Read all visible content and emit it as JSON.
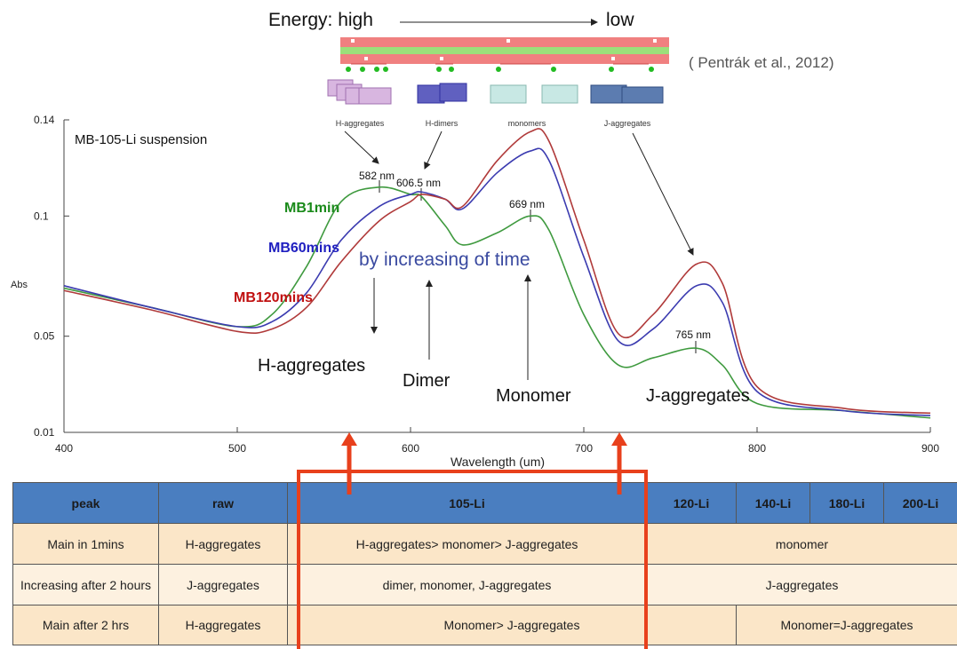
{
  "diagram": {
    "energy_high": "Energy: high",
    "energy_low": "low",
    "citation": "( Pentrák et al., 2012)",
    "labels": [
      "H-aggregates",
      "H-dimers",
      "monomers",
      "J-aggregates"
    ]
  },
  "chart_data": {
    "type": "line",
    "xlabel": "Wavelength (um)",
    "ylabel": "Abs",
    "x": [
      400,
      450,
      500,
      520,
      540,
      560,
      582,
      600,
      606.5,
      620,
      630,
      650,
      669,
      680,
      700,
      720,
      740,
      765,
      780,
      800,
      850,
      900
    ],
    "series": [
      {
        "name": "MB1min",
        "color": "#3f9a3f",
        "label_color": "#1a8a1a",
        "values": [
          0.07,
          0.062,
          0.054,
          0.059,
          0.079,
          0.106,
          0.112,
          0.109,
          0.108,
          0.096,
          0.088,
          0.093,
          0.1,
          0.094,
          0.059,
          0.038,
          0.041,
          0.045,
          0.038,
          0.022,
          0.019,
          0.016
        ]
      },
      {
        "name": "MB60mins",
        "color": "#3b3bb0",
        "label_color": "#2020c0",
        "values": [
          0.071,
          0.062,
          0.054,
          0.056,
          0.068,
          0.09,
          0.104,
          0.109,
          0.11,
          0.107,
          0.103,
          0.118,
          0.127,
          0.123,
          0.083,
          0.048,
          0.053,
          0.071,
          0.064,
          0.027,
          0.019,
          0.017
        ]
      },
      {
        "name": "MB120mins",
        "color": "#b03a3a",
        "label_color": "#c01010",
        "values": [
          0.069,
          0.061,
          0.052,
          0.053,
          0.062,
          0.081,
          0.098,
          0.106,
          0.109,
          0.107,
          0.104,
          0.123,
          0.135,
          0.131,
          0.09,
          0.051,
          0.059,
          0.08,
          0.072,
          0.029,
          0.02,
          0.018
        ]
      }
    ],
    "xlim": [
      400,
      900
    ],
    "xticks": [
      400,
      500,
      600,
      700,
      800,
      900
    ],
    "ylim": [
      0.01,
      0.14
    ],
    "yticks": [
      0.01,
      0.05,
      0.1,
      0.14
    ],
    "annotations": [
      "MB-105-Li suspension",
      "582 nm",
      "606.5 nm",
      "669 nm",
      "765 nm",
      "by increasing of time",
      "H-aggregates",
      "Dimer",
      "Monomer",
      "J-aggregates"
    ]
  },
  "table": {
    "header": [
      "peak",
      "raw",
      "105-Li",
      "120-Li",
      "140-Li",
      "180-Li",
      "200-Li"
    ],
    "rows": [
      [
        "Main in 1mins",
        "H-aggregates",
        "H-aggregates> monomer> J-aggregates",
        "monomer"
      ],
      [
        "Increasing after 2 hours",
        "J-aggregates",
        "dimer, monomer, J-aggregates",
        "J-aggregates"
      ],
      [
        "Main after 2 hrs",
        "H-aggregates",
        "Monomer> J-aggregates",
        "Monomer=J-aggregates"
      ]
    ]
  }
}
